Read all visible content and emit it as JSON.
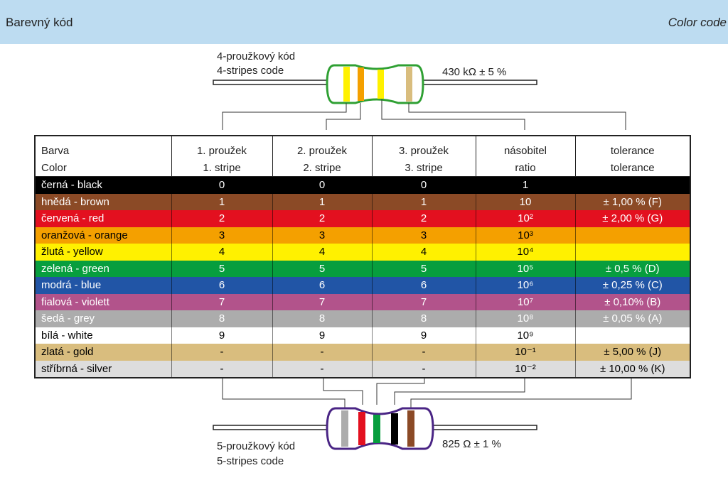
{
  "header": {
    "title": "Barevný kód",
    "title_en": "Color code"
  },
  "top_resistor": {
    "label_cs": "4-proužkový kód",
    "label_en": "4-stripes code",
    "value": "430 kΩ ± 5 %"
  },
  "bottom_resistor": {
    "label_cs": "5-proužkový kód",
    "label_en": "5-stripes code",
    "value": "825 Ω ± 1 %"
  },
  "table": {
    "columns": [
      {
        "cs": "Barva",
        "en": "Color"
      },
      {
        "cs": "1. proužek",
        "en": "1. stripe"
      },
      {
        "cs": "2. proužek",
        "en": "2. stripe"
      },
      {
        "cs": "3. proužek",
        "en": "3. stripe"
      },
      {
        "cs": "násobitel",
        "en": "ratio"
      },
      {
        "cs": "tolerance",
        "en": "tolerance"
      }
    ],
    "rows": [
      {
        "bg": "#000000",
        "fg": "#ffffff",
        "cells": [
          "černá - black",
          "0",
          "0",
          "0",
          "1",
          null
        ]
      },
      {
        "bg": "#8b4a26",
        "fg": "#ffffff",
        "cells": [
          "hnědá - brown",
          "1",
          "1",
          "1",
          "10",
          "± 1,00 % (F)"
        ]
      },
      {
        "bg": "#e3101f",
        "fg": "#ffffff",
        "cells": [
          "červená - red",
          "2",
          "2",
          "2",
          "10²",
          "± 2,00 % (G)"
        ]
      },
      {
        "bg": "#f4a000",
        "fg": "#000000",
        "cells": [
          "oranžová - orange",
          "3",
          "3",
          "3",
          "10³",
          null
        ]
      },
      {
        "bg": "#fff100",
        "fg": "#000000",
        "cells": [
          "žlutá - yellow",
          "4",
          "4",
          "4",
          "10⁴",
          null
        ]
      },
      {
        "bg": "#079e3e",
        "fg": "#ffffff",
        "cells": [
          "zelená - green",
          "5",
          "5",
          "5",
          "10⁵",
          "± 0,5  % (D)"
        ]
      },
      {
        "bg": "#2155a6",
        "fg": "#ffffff",
        "cells": [
          "modrá - blue",
          "6",
          "6",
          "6",
          "10⁶",
          "± 0,25 % (C)"
        ]
      },
      {
        "bg": "#b2538b",
        "fg": "#ffffff",
        "cells": [
          "fialová - violett",
          "7",
          "7",
          "7",
          "10⁷",
          "± 0,10% (B)"
        ]
      },
      {
        "bg": "#acacac",
        "fg": "#ffffff",
        "cells": [
          "šedá - grey",
          "8",
          "8",
          "8",
          "10⁸",
          "± 0,05 % (A)"
        ]
      },
      {
        "bg": "#ffffff",
        "fg": "#000000",
        "cells": [
          "bílá - white",
          "9",
          "9",
          "9",
          "10⁹",
          null
        ]
      },
      {
        "bg": "#d9bd7e",
        "fg": "#000000",
        "cells": [
          "zlatá - gold",
          "-",
          "-",
          "-",
          "10⁻¹",
          "± 5,00 % (J)"
        ]
      },
      {
        "bg": "#dddddd",
        "fg": "#000000",
        "cells": [
          "stříbrná - silver",
          "-",
          "-",
          "-",
          "10⁻²",
          "± 10,00 % (K)"
        ]
      }
    ]
  }
}
